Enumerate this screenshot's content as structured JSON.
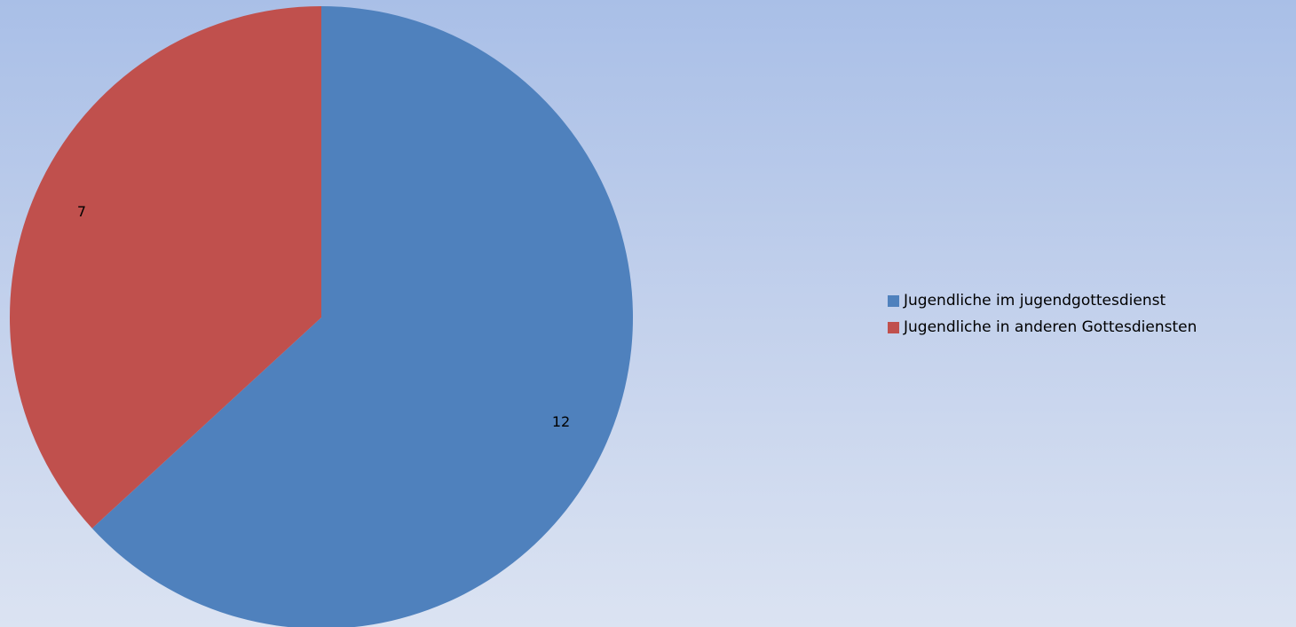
{
  "chart_data": {
    "type": "pie",
    "title": "",
    "categories": [
      "Jugendliche im jugendgottesdienst",
      "Jugendliche in anderen Gottesdiensten"
    ],
    "values": [
      12,
      7
    ],
    "colors": [
      "#4f81bd",
      "#c0504d"
    ],
    "data_labels": [
      "12",
      "7"
    ],
    "start_angle": "top, clockwise",
    "legend_position": "right"
  },
  "legend": {
    "items": [
      {
        "label": "Jugendliche im jugendgottesdienst",
        "color": "#4f81bd"
      },
      {
        "label": "Jugendliche in anderen Gottesdiensten",
        "color": "#c0504d"
      }
    ]
  }
}
